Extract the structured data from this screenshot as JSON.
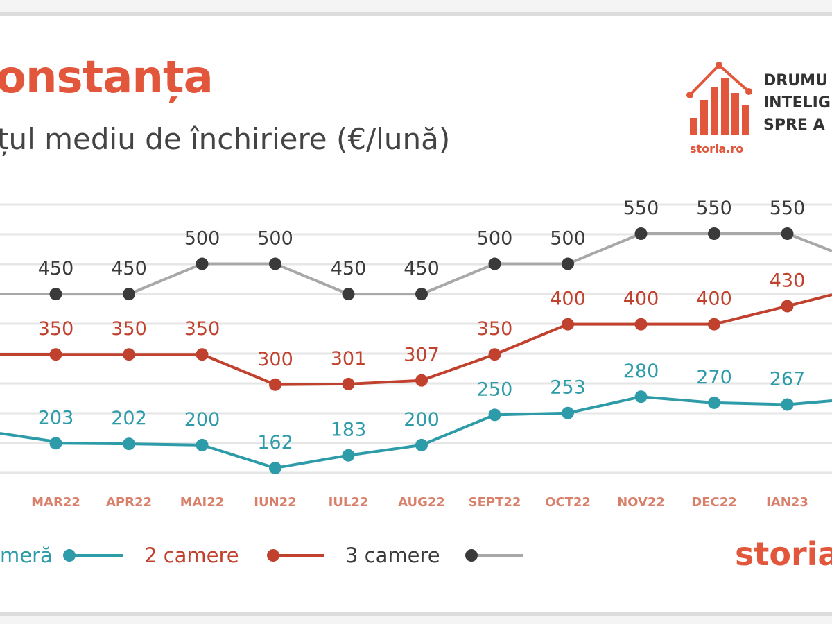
{
  "header": {
    "title": "onstanța",
    "subtitle": "țul mediu de închiriere (€/lună)"
  },
  "logo": {
    "tagline_lines": [
      "DRUMU",
      "INTELIG",
      "SPRE A"
    ],
    "small_brand": "storia.ro",
    "icon": "house-bar-chart-icon"
  },
  "brand": {
    "text": "storia"
  },
  "colors": {
    "accent": "#e2573b",
    "one_room": "#2e9ba8",
    "two_rooms": "#c0412d",
    "three_rooms": "#3a3a3a",
    "three_rooms_line": "#a8a8a8",
    "grid": "#e6e6e6",
    "tick": "#d9806b"
  },
  "chart_data": {
    "type": "line",
    "categories": [
      "",
      "MAR22",
      "APR22",
      "MAI22",
      "IUN22",
      "IUL22",
      "AUG22",
      "SEPT22",
      "OCT22",
      "NOV22",
      "DEC22",
      "IAN23",
      ""
    ],
    "ylabel": "",
    "xlabel": "",
    "grid": true,
    "series": [
      {
        "name": "meră",
        "color_key": "one_room",
        "values": [
          null,
          203,
          202,
          200,
          162,
          183,
          200,
          250,
          253,
          280,
          270,
          267,
          null
        ],
        "labels": [
          "",
          "203",
          "202",
          "200",
          "162",
          "183",
          "200",
          "250",
          "253",
          "280",
          "270",
          "267",
          ""
        ]
      },
      {
        "name": "2 camere",
        "color_key": "two_rooms",
        "values": [
          null,
          350,
          350,
          350,
          300,
          301,
          307,
          350,
          400,
          400,
          400,
          430,
          null
        ],
        "labels": [
          "",
          "350",
          "350",
          "350",
          "300",
          "301",
          "307",
          "350",
          "400",
          "400",
          "400",
          "430",
          ""
        ]
      },
      {
        "name": "3 camere",
        "color_key": "three_rooms",
        "values": [
          null,
          450,
          450,
          500,
          500,
          450,
          450,
          500,
          500,
          550,
          550,
          550,
          null
        ],
        "labels": [
          "",
          "450",
          "450",
          "500",
          "500",
          "450",
          "450",
          "500",
          "500",
          "550",
          "550",
          "550",
          ""
        ]
      }
    ],
    "legend": [
      {
        "label": "meră",
        "color_key": "one_room"
      },
      {
        "label": "2 camere",
        "color_key": "two_rooms"
      },
      {
        "label": "3 camere",
        "color_key": "three_rooms"
      }
    ],
    "legend_position": "bottom"
  }
}
